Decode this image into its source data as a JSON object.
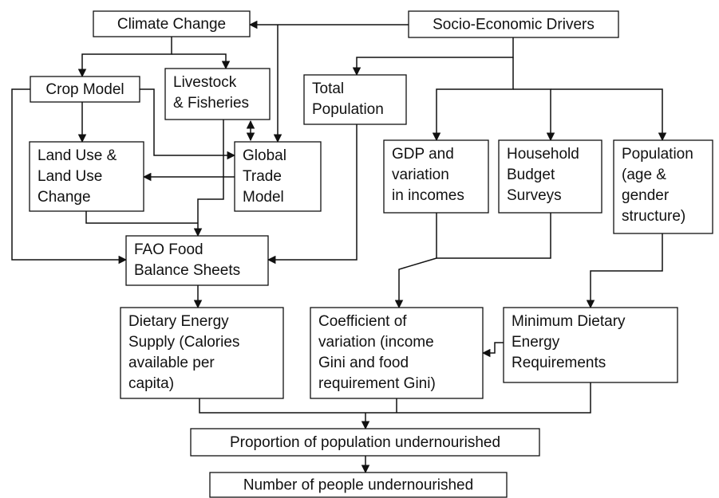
{
  "nodes": [
    {
      "lines": [
        "Climate Change"
      ]
    },
    {
      "lines": [
        "Socio-Economic Drivers"
      ]
    },
    {
      "lines": [
        "Crop Model"
      ]
    },
    {
      "lines": [
        "Livestock",
        "& Fisheries"
      ]
    },
    {
      "lines": [
        "Total",
        "Population"
      ]
    },
    {
      "lines": [
        "Land Use &",
        "Land Use",
        "Change"
      ]
    },
    {
      "lines": [
        "Global",
        "Trade",
        "Model"
      ]
    },
    {
      "lines": [
        "GDP and",
        "variation",
        "in incomes"
      ]
    },
    {
      "lines": [
        "Household",
        "Budget",
        "Surveys"
      ]
    },
    {
      "lines": [
        "Population",
        "(age &",
        "gender",
        "structure)"
      ]
    },
    {
      "lines": [
        "FAO Food",
        "Balance Sheets"
      ]
    },
    {
      "lines": [
        "Dietary Energy",
        "Supply (Calories",
        "available per",
        "capita)"
      ]
    },
    {
      "lines": [
        "Coefficient of",
        "variation (income",
        "Gini and food",
        "requirement Gini)"
      ]
    },
    {
      "lines": [
        "Minimum Dietary",
        "Energy",
        "Requirements"
      ]
    },
    {
      "lines": [
        "Proportion of population undernourished"
      ]
    },
    {
      "lines": [
        "Number of people undernourished"
      ]
    }
  ]
}
